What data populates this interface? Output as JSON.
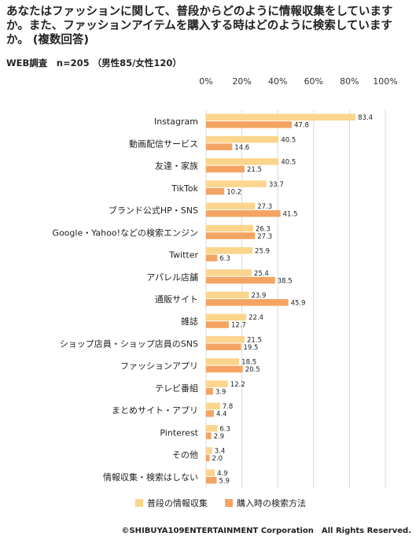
{
  "title": "あなたはファッションに関して、普段からどのように情報収集をしていますか。また、ファッションアイテムを購入する時はどのように検索していますか。 (複数回答)",
  "subtitle": "WEB調査　n=205 （男性85/女性120）",
  "footer": "©SHIBUYA109ENTERTAINMENT Corporation　All Rights Reserved.",
  "chart_data": {
    "type": "bar",
    "orientation": "horizontal",
    "xlim": [
      0,
      100
    ],
    "x_ticks": [
      "0%",
      "20%",
      "40%",
      "60%",
      "80%",
      "100%"
    ],
    "grid": true,
    "legend_position": "bottom",
    "categories": [
      "Instagram",
      "動画配信サービス",
      "友達・家族",
      "TikTok",
      "ブランド公式HP・SNS",
      "Google・Yahoo!などの検索エンジン",
      "Twitter",
      "アパレル店舗",
      "通販サイト",
      "雑誌",
      "ショップ店員・ショップ店員のSNS",
      "ファッションアプリ",
      "テレビ番組",
      "まとめサイト・アプリ",
      "Pinterest",
      "その他",
      "情報収集・検索はしない"
    ],
    "series": [
      {
        "name": "普段の情報収集",
        "color": "#fbd58c",
        "values": [
          83.4,
          40.5,
          40.5,
          33.7,
          27.3,
          26.3,
          25.9,
          25.4,
          23.9,
          22.4,
          21.5,
          18.5,
          12.2,
          7.8,
          6.3,
          3.4,
          4.9
        ]
      },
      {
        "name": "購入時の検索方法",
        "color": "#f4a462",
        "values": [
          47.8,
          14.6,
          21.5,
          10.2,
          41.5,
          27.3,
          6.3,
          38.5,
          45.9,
          12.7,
          19.5,
          20.5,
          3.9,
          4.4,
          2.9,
          2.0,
          5.9
        ]
      }
    ]
  }
}
